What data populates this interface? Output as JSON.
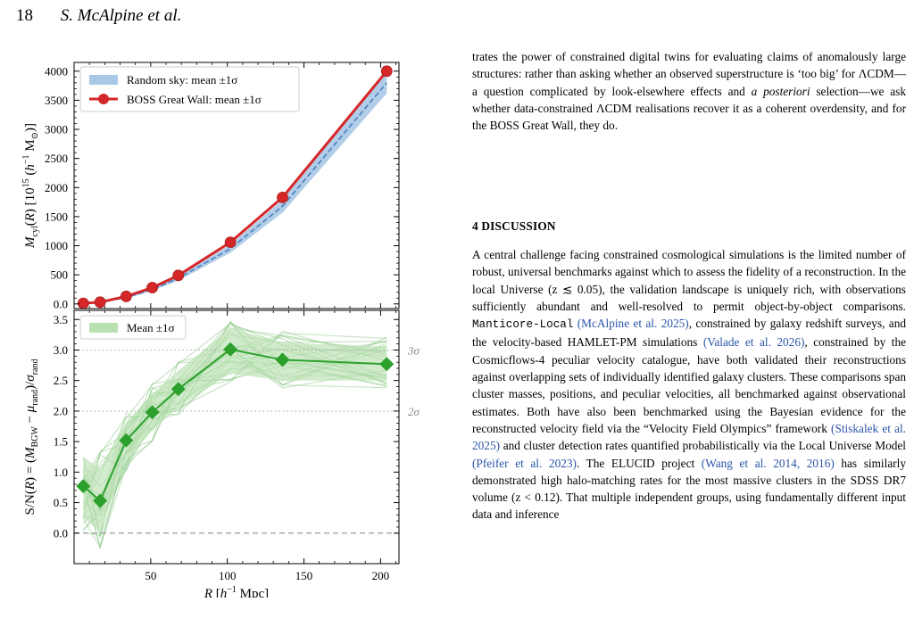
{
  "header": {
    "page_number": "18",
    "authors": "S. McAlpine et al."
  },
  "paragraph_intro": {
    "p1": "trates the power of constrained digital twins for evaluating claims of anomalously large structures: rather than asking whether an observed superstructure is ‘too big’ for ΛCDM—a question complicated by look-elsewhere effects and ",
    "p1_em": "a posteriori",
    "p1_tail": " selection—we ask whether data-constrained ΛCDM realisations recover it as a coherent overdensity, and for the BOSS Great Wall, they do."
  },
  "section": {
    "heading": "4 DISCUSSION"
  },
  "discussion": {
    "t1": "A central challenge facing constrained cosmological simulations is the limited number of robust, universal benchmarks against which to assess the fidelity of a reconstruction. In the local Universe (z ≲ 0.05), the validation landscape is uniquely rich, with observations sufficiently abundant and well-resolved to permit object-by-object comparisons. ",
    "code1": "Manticore-Local",
    "c1": "(McAlpine et al. 2025)",
    "t2": ", constrained by galaxy redshift surveys, and the velocity-based HAMLET-PM simulations ",
    "c2": "(Valade et al. 2026)",
    "t3": ", constrained by the Cosmicflows-4 peculiar velocity catalogue, have both validated their reconstructions against overlapping sets of individually identified galaxy clusters. These comparisons span cluster masses, positions, and peculiar velocities, all benchmarked against observational estimates. Both have also been benchmarked using the Bayesian evidence for the reconstructed velocity field via the “Velocity Field Olympics” framework ",
    "c3": "(Stiskalek et al. 2025)",
    "t4": " and cluster detection rates quantified probabilistically via the Local Universe Model ",
    "c4": "(Pfeifer et al. 2023)",
    "t5": ". The ELUCID project ",
    "c5": "(Wang et al. 2014, 2016)",
    "t6": " has similarly demonstrated high halo-matching rates for the most massive clusters in the SDSS DR7 volume (z < 0.12). That multiple independent groups, using fundamentally different input data and inference"
  },
  "chart_data": [
    {
      "type": "line",
      "panel": "top",
      "x": [
        6,
        17,
        34,
        51,
        68,
        102,
        136,
        204
      ],
      "series": [
        {
          "name": "BOSS Great Wall: mean ±1σ",
          "color": "#d62728",
          "values": [
            10,
            30,
            130,
            280,
            490,
            1060,
            1830,
            4000
          ]
        },
        {
          "name": "Random sky: mean ±1σ",
          "color": "#4a7fc0",
          "band_color": "#a9c8e6",
          "values": [
            8,
            25,
            110,
            250,
            440,
            950,
            1680,
            3800
          ],
          "lower": [
            5,
            18,
            95,
            225,
            400,
            880,
            1570,
            3620
          ],
          "upper": [
            12,
            33,
            125,
            275,
            480,
            1020,
            1790,
            3980
          ]
        }
      ],
      "ylabel": "M_cyl(R) [10^15 (h^-1 M_⊙)]",
      "xlim": [
        0,
        212
      ],
      "ylim": [
        -80,
        4150
      ],
      "yticks": [
        0,
        500,
        1000,
        1500,
        2000,
        2500,
        3000,
        3500,
        4000
      ],
      "legend": "top-left"
    },
    {
      "type": "line",
      "panel": "bottom",
      "x": [
        6,
        17,
        34,
        51,
        68,
        102,
        136,
        204
      ],
      "series": [
        {
          "name": "Mean ±1σ",
          "color": "#2ca02c",
          "band_color": "#b9e0b0",
          "values": [
            0.77,
            0.53,
            1.52,
            1.98,
            2.36,
            3.01,
            2.84,
            2.77
          ],
          "lower": [
            0.25,
            0.02,
            1.2,
            1.68,
            2.06,
            2.62,
            2.5,
            2.5
          ],
          "upper": [
            1.25,
            1.05,
            1.82,
            2.28,
            2.66,
            3.36,
            3.12,
            3.06
          ]
        }
      ],
      "reference_lines": [
        {
          "y": 3.0,
          "label": "3σ"
        },
        {
          "y": 2.0,
          "label": "2σ"
        },
        {
          "y": 0.0,
          "label": ""
        }
      ],
      "ylabel": "S/N(R) = (M_BGW − μ_rand)/σ_rand",
      "xlabel": "R [h^-1 Mpc]",
      "xlim": [
        0,
        212
      ],
      "ylim": [
        -0.5,
        3.65
      ],
      "xticks": [
        50,
        100,
        150,
        200
      ],
      "yticks": [
        0.0,
        0.5,
        1.0,
        1.5,
        2.0,
        2.5,
        3.0,
        3.5
      ],
      "legend": "top-left"
    }
  ]
}
